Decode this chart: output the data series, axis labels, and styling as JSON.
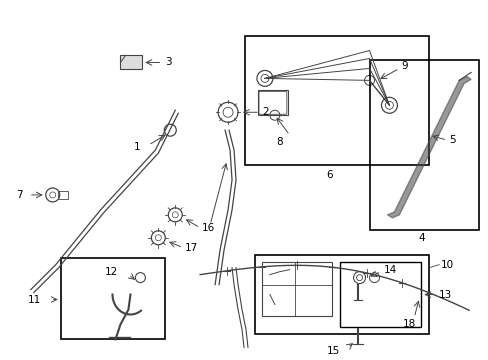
{
  "background_color": "#ffffff",
  "line_color": "#444444",
  "label_color": "#000000",
  "box_color": "#000000",
  "figsize": [
    4.89,
    3.6
  ],
  "dpi": 100
}
